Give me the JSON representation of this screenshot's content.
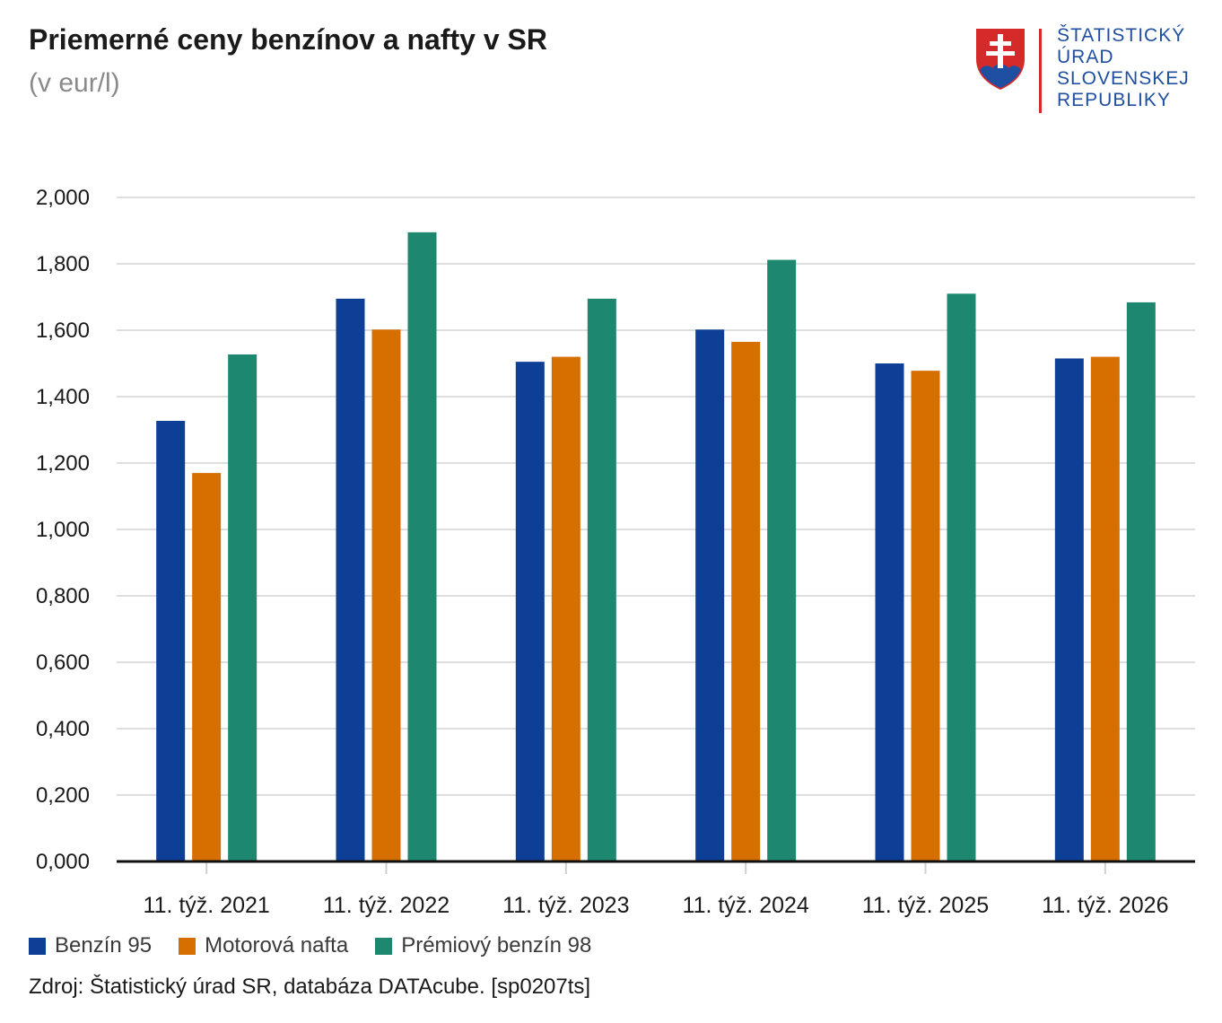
{
  "header": {
    "title": "Priemerné ceny benzínov a nafty v SR",
    "subtitle": "(v eur/l)"
  },
  "logo": {
    "lines": [
      "ŠTATISTICKÝ",
      "ÚRAD",
      "SLOVENSKEJ",
      "REPUBLIKY"
    ],
    "icon": "slovak-coat-of-arms-icon",
    "colors": {
      "text": "#1f4fa0",
      "rule": "#d42a2a",
      "shield_red": "#d42a2a",
      "shield_blue": "#1f4fa0"
    }
  },
  "chart_data": {
    "type": "bar",
    "title": "Priemerné ceny benzínov a nafty v SR",
    "subtitle": "(v eur/l)",
    "categories": [
      "11. týž. 2021",
      "11. týž. 2022",
      "11. týž. 2023",
      "11. týž. 2024",
      "11. týž. 2025",
      "11. týž. 2026"
    ],
    "series": [
      {
        "name": "Benzín 95",
        "color": "#0e3f96",
        "values": [
          1.327,
          1.695,
          1.505,
          1.602,
          1.5,
          1.515
        ]
      },
      {
        "name": "Motorová nafta",
        "color": "#d66f00",
        "values": [
          1.17,
          1.602,
          1.52,
          1.565,
          1.478,
          1.52
        ]
      },
      {
        "name": "Prémiový benzín 98",
        "color": "#1e8770",
        "values": [
          1.527,
          1.895,
          1.695,
          1.812,
          1.71,
          1.684
        ]
      }
    ],
    "yticks": [
      "0,000",
      "0,200",
      "0,400",
      "0,600",
      "0,800",
      "1,000",
      "1,200",
      "1,400",
      "1,600",
      "1,800",
      "2,000"
    ],
    "ylim": [
      0,
      2.0
    ],
    "grid": true,
    "legend_position": "bottom-left"
  },
  "footer": {
    "source": "Zdroj: Štatistický úrad SR, databáza DATAcube. [sp0207ts]"
  }
}
